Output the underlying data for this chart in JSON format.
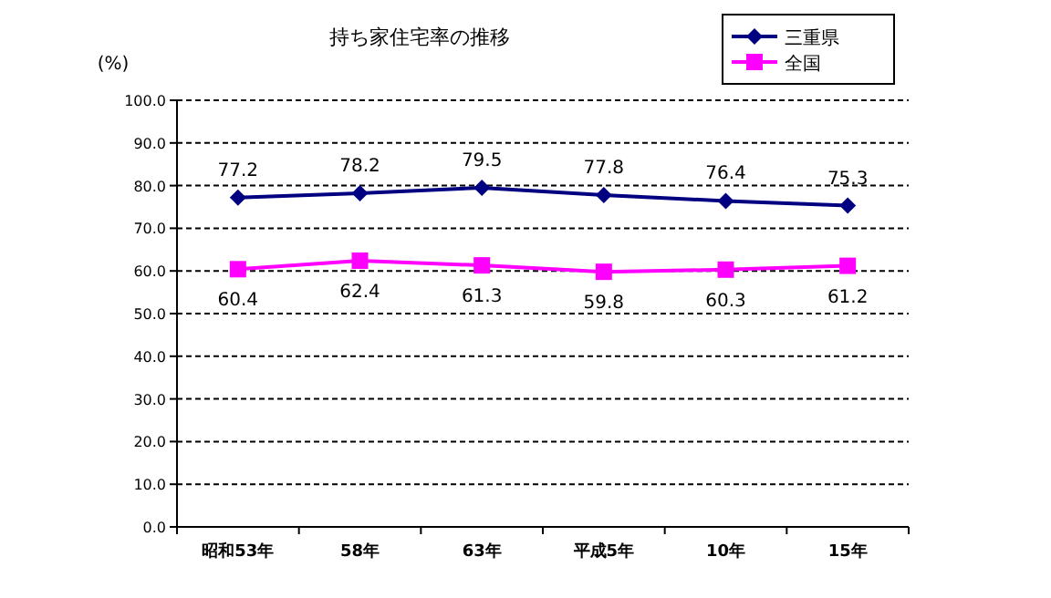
{
  "chart_data": {
    "type": "line",
    "title": "持ち家住宅率の推移",
    "ylabel": "(%)",
    "categories": [
      "昭和53年",
      "58年",
      "63年",
      "平成5年",
      "10年",
      "15年"
    ],
    "series": [
      {
        "name": "三重県",
        "color": "#000080",
        "marker": "diamond",
        "values": [
          77.2,
          78.2,
          79.5,
          77.8,
          76.4,
          75.3
        ]
      },
      {
        "name": "全国",
        "color": "#ff00ff",
        "marker": "square",
        "values": [
          60.4,
          62.4,
          61.3,
          59.8,
          60.3,
          61.2
        ]
      }
    ],
    "ylim": [
      0,
      100
    ],
    "yticks": [
      {
        "value": 0,
        "label": "0.0"
      },
      {
        "value": 10,
        "label": "10.0"
      },
      {
        "value": 20,
        "label": "20.0"
      },
      {
        "value": 30,
        "label": "30.0"
      },
      {
        "value": 40,
        "label": "40.0"
      },
      {
        "value": 50,
        "label": "50.0"
      },
      {
        "value": 60,
        "label": "60.0"
      },
      {
        "value": 70,
        "label": "70.0"
      },
      {
        "value": 80,
        "label": "80.0"
      },
      {
        "value": 90,
        "label": "90.0"
      },
      {
        "value": 100,
        "label": "100.0"
      }
    ],
    "grid": "y",
    "legend": "top right",
    "data_labels": true,
    "line_style": "solid"
  }
}
